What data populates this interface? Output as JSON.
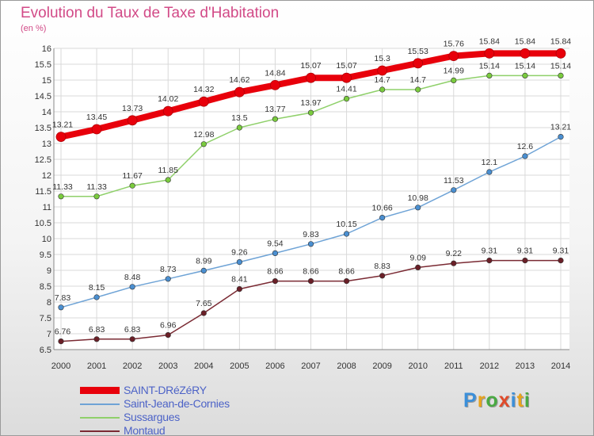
{
  "title": "Evolution du Taux de Taxe d'Habitation",
  "subtitle": "(en %)",
  "logo": {
    "text": "Proxiti"
  },
  "chart_data": {
    "type": "line",
    "title": "Evolution du Taux de Taxe d'Habitation",
    "ylabel": "(en %)",
    "xlabel": "",
    "x": [
      "2000",
      "2001",
      "2002",
      "2003",
      "2004",
      "2005",
      "2006",
      "2007",
      "2008",
      "2009",
      "2010",
      "2011",
      "2012",
      "2013",
      "2014"
    ],
    "ylim": [
      6.5,
      16
    ],
    "yticks": [
      "6.5",
      "7",
      "7.5",
      "8",
      "8.5",
      "9",
      "9.5",
      "10",
      "10.5",
      "11",
      "11.5",
      "12",
      "12.5",
      "13",
      "13.5",
      "14",
      "14.5",
      "15",
      "15.5",
      "16"
    ],
    "grid": true,
    "legend_position": "bottom-left",
    "series": [
      {
        "name": "SAINT-DRéZéRY",
        "color": "#e8000b",
        "point_color": "#e8000b",
        "values": [
          13.21,
          13.45,
          13.73,
          14.02,
          14.32,
          14.62,
          14.84,
          15.07,
          15.07,
          15.3,
          15.53,
          15.76,
          15.84,
          15.84,
          15.84
        ],
        "labels": [
          "13.21",
          "13.45",
          "13.73",
          "14.02",
          "14.32",
          "14.62",
          "14.84",
          "15.07",
          "15.07",
          "15.3",
          "15.53",
          "15.76",
          "15.84",
          "15.84",
          "15.84"
        ]
      },
      {
        "name": "Saint-Jean-de-Cornies",
        "color": "#6ea3d6",
        "point_color": "#4a8fd1",
        "values": [
          7.83,
          8.15,
          8.48,
          8.73,
          8.99,
          9.26,
          9.54,
          9.83,
          10.15,
          10.66,
          10.98,
          11.53,
          12.1,
          12.6,
          13.21
        ],
        "labels": [
          "7.83",
          "8.15",
          "8.48",
          "8.73",
          "8.99",
          "9.26",
          "9.54",
          "9.83",
          "10.15",
          "10.66",
          "10.98",
          "11.53",
          "12.1",
          "12.6",
          "13.21"
        ]
      },
      {
        "name": "Sussargues",
        "color": "#8fd06a",
        "point_color": "#7acb3e",
        "values": [
          11.33,
          11.33,
          11.67,
          11.85,
          12.98,
          13.5,
          13.77,
          13.97,
          14.41,
          14.7,
          14.7,
          14.99,
          15.14,
          15.14,
          15.14
        ],
        "labels": [
          "11.33",
          "11.33",
          "11.67",
          "11.85",
          "12.98",
          "13.5",
          "13.77",
          "13.97",
          "14.41",
          "14.7",
          "14.7",
          "14.99",
          "15.14",
          "15.14",
          "15.14"
        ]
      },
      {
        "name": "Montaud",
        "color": "#7a2a33",
        "point_color": "#6a1f27",
        "values": [
          6.76,
          6.83,
          6.83,
          6.96,
          7.65,
          8.41,
          8.66,
          8.66,
          8.66,
          8.83,
          9.09,
          9.22,
          9.31,
          9.31,
          9.31
        ],
        "labels": [
          "6.76",
          "6.83",
          "6.83",
          "6.96",
          "7.65",
          "8.41",
          "8.66",
          "8.66",
          "8.66",
          "8.83",
          "9.09",
          "9.22",
          "9.31",
          "9.31",
          "9.31"
        ]
      }
    ]
  }
}
